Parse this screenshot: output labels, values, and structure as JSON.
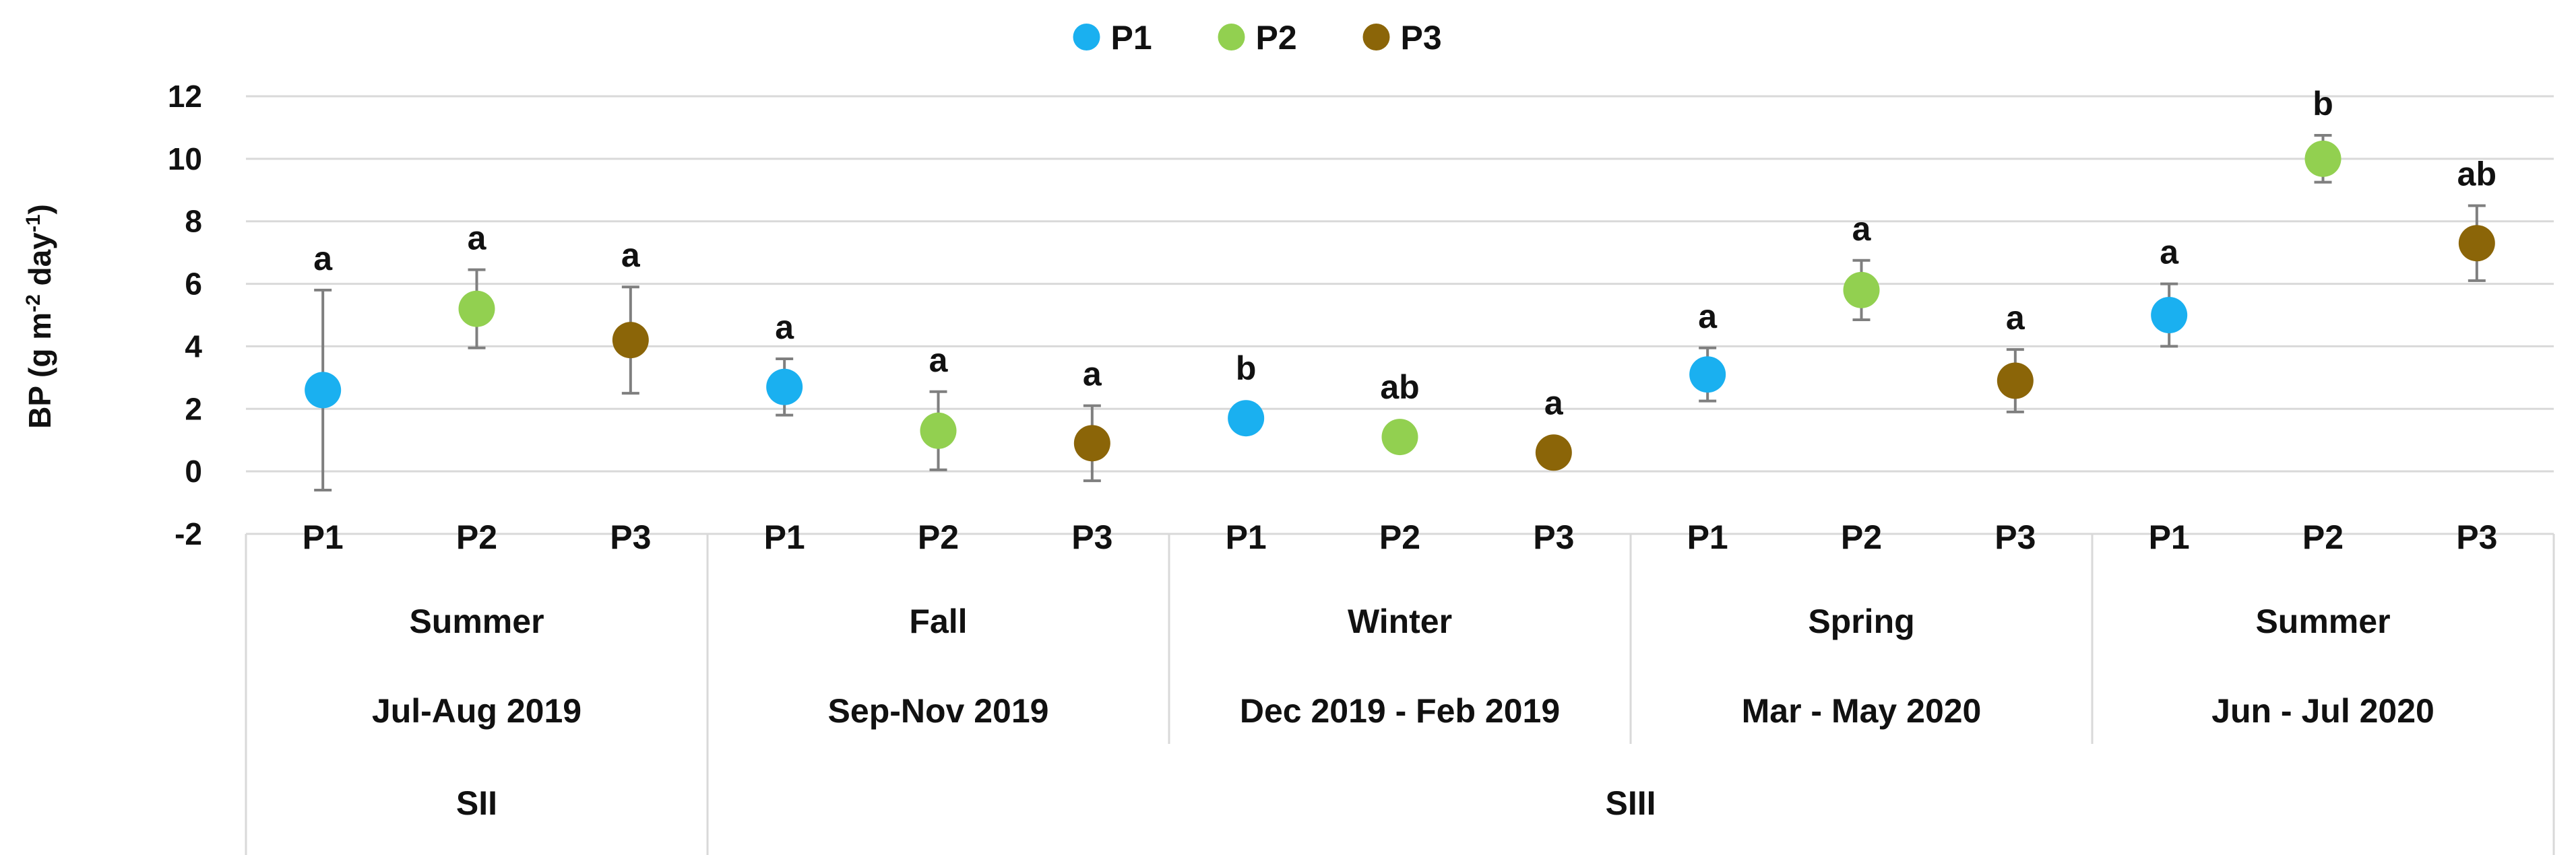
{
  "chart_data": {
    "type": "scatter",
    "title": "",
    "xlabel": "",
    "ylabel_main": "BP (g m",
    "ylabel_sup1": "-2",
    "ylabel_mid": " day",
    "ylabel_sup2": "-1",
    "ylabel_end": ")",
    "ylim": [
      -2,
      12
    ],
    "yticks": [
      -2,
      0,
      2,
      4,
      6,
      8,
      10,
      12
    ],
    "grid": true,
    "legend_position": "top-center",
    "series": [
      {
        "name": "P1",
        "color": "#1ab0f0"
      },
      {
        "name": "P2",
        "color": "#92d050"
      },
      {
        "name": "P3",
        "color": "#8b6508"
      }
    ],
    "periods": [
      {
        "season": "Summer",
        "dates": "Jul-Aug 2019"
      },
      {
        "season": "Fall",
        "dates": "Sep-Nov 2019"
      },
      {
        "season": "Winter",
        "dates": "Dec 2019 - Feb 2019"
      },
      {
        "season": "Spring",
        "dates": "Mar - May 2020"
      },
      {
        "season": "Summer",
        "dates": "Jun - Jul 2020"
      }
    ],
    "groups": [
      {
        "label": "SII",
        "periods": 1
      },
      {
        "label": "SIII",
        "periods": 4
      }
    ],
    "points": [
      {
        "period": 0,
        "series": 0,
        "x": "P1",
        "value": 2.6,
        "err": 3.2,
        "label": "a"
      },
      {
        "period": 0,
        "series": 1,
        "x": "P2",
        "value": 5.2,
        "err": 1.25,
        "label": "a"
      },
      {
        "period": 0,
        "series": 2,
        "x": "P3",
        "value": 4.2,
        "err": 1.7,
        "label": "a"
      },
      {
        "period": 1,
        "series": 0,
        "x": "P1",
        "value": 2.7,
        "err": 0.9,
        "label": "a"
      },
      {
        "period": 1,
        "series": 1,
        "x": "P2",
        "value": 1.3,
        "err": 1.25,
        "label": "a"
      },
      {
        "period": 1,
        "series": 2,
        "x": "P3",
        "value": 0.9,
        "err": 1.2,
        "label": "a"
      },
      {
        "period": 2,
        "series": 0,
        "x": "P1",
        "value": 1.7,
        "err": 0,
        "label": "b"
      },
      {
        "period": 2,
        "series": 1,
        "x": "P2",
        "value": 1.1,
        "err": 0,
        "label": "ab"
      },
      {
        "period": 2,
        "series": 2,
        "x": "P3",
        "value": 0.6,
        "err": 0,
        "label": "a"
      },
      {
        "period": 3,
        "series": 0,
        "x": "P1",
        "value": 3.1,
        "err": 0.85,
        "label": "a"
      },
      {
        "period": 3,
        "series": 1,
        "x": "P2",
        "value": 5.8,
        "err": 0.95,
        "label": "a"
      },
      {
        "period": 3,
        "series": 2,
        "x": "P3",
        "value": 2.9,
        "err": 1.0,
        "label": "a"
      },
      {
        "period": 4,
        "series": 0,
        "x": "P1",
        "value": 5.0,
        "err": 1.0,
        "label": "a"
      },
      {
        "period": 4,
        "series": 1,
        "x": "P2",
        "value": 10.0,
        "err": 0.75,
        "label": "b"
      },
      {
        "period": 4,
        "series": 2,
        "x": "P3",
        "value": 7.3,
        "err": 1.2,
        "label": "ab"
      }
    ]
  }
}
